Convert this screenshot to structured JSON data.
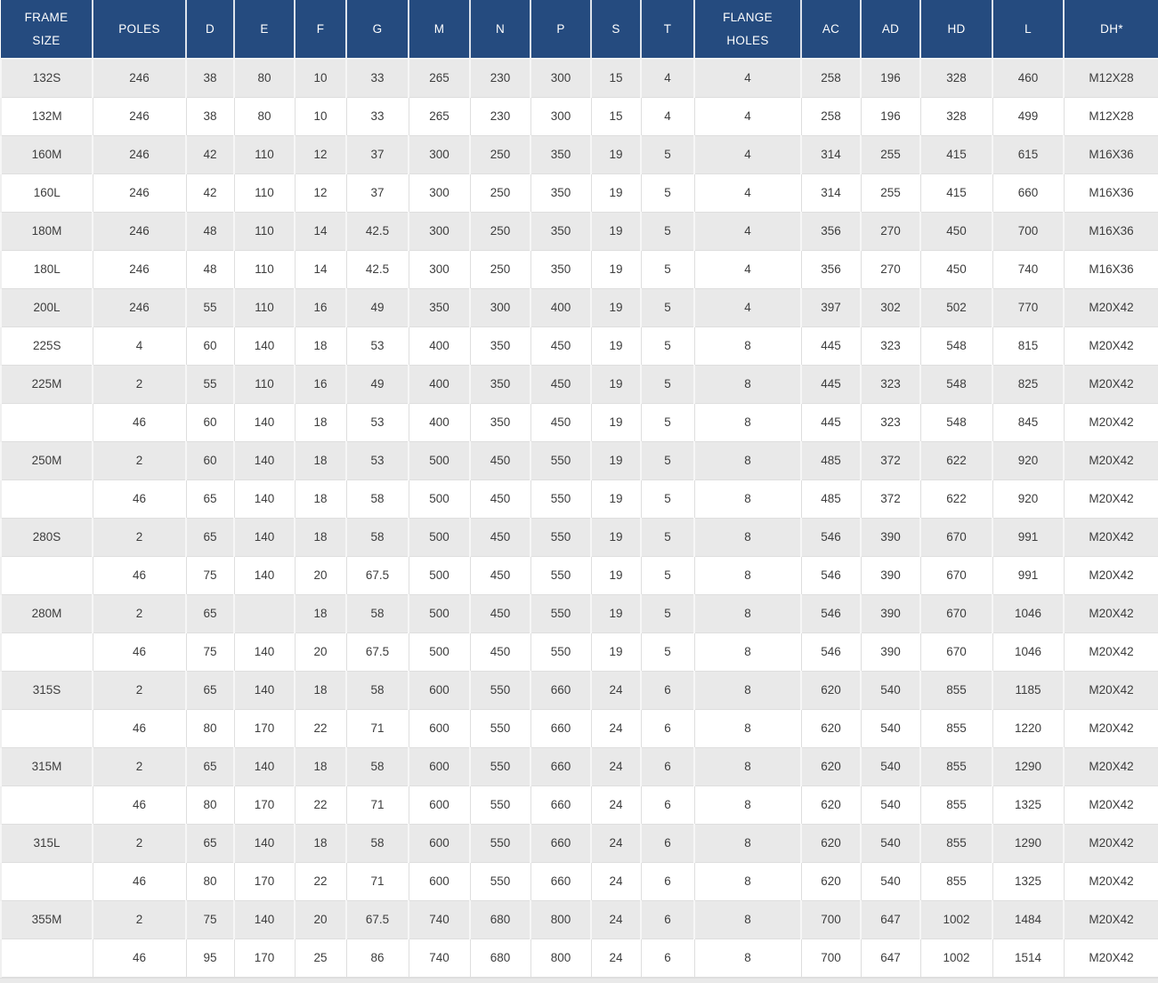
{
  "colors": {
    "header_bg": "#254b7f",
    "header_text": "#ffffff",
    "row_bg": "#ffffff",
    "row_alt_bg": "#e9e9e9",
    "grid_line": "#dedede",
    "cell_text": "#3d3d3d"
  },
  "table": {
    "columns": [
      {
        "key": "frame-size",
        "label": "FRAME\nSIZE"
      },
      {
        "key": "poles",
        "label": "POLES"
      },
      {
        "key": "d",
        "label": "D"
      },
      {
        "key": "e",
        "label": "E"
      },
      {
        "key": "f",
        "label": "F"
      },
      {
        "key": "g",
        "label": "G"
      },
      {
        "key": "m",
        "label": "M"
      },
      {
        "key": "n",
        "label": "N"
      },
      {
        "key": "p",
        "label": "P"
      },
      {
        "key": "s",
        "label": "S"
      },
      {
        "key": "t",
        "label": "T"
      },
      {
        "key": "flange-holes",
        "label": "FLANGE\nHOLES"
      },
      {
        "key": "ac",
        "label": "AC"
      },
      {
        "key": "ad",
        "label": "AD"
      },
      {
        "key": "hd",
        "label": "HD"
      },
      {
        "key": "l",
        "label": "L"
      },
      {
        "key": "dh",
        "label": "DH*"
      }
    ],
    "rows": [
      [
        "132S",
        "246",
        "38",
        "80",
        "10",
        "33",
        "265",
        "230",
        "300",
        "15",
        "4",
        "4",
        "258",
        "196",
        "328",
        "460",
        "M12X28"
      ],
      [
        "132M",
        "246",
        "38",
        "80",
        "10",
        "33",
        "265",
        "230",
        "300",
        "15",
        "4",
        "4",
        "258",
        "196",
        "328",
        "499",
        "M12X28"
      ],
      [
        "160M",
        "246",
        "42",
        "110",
        "12",
        "37",
        "300",
        "250",
        "350",
        "19",
        "5",
        "4",
        "314",
        "255",
        "415",
        "615",
        "M16X36"
      ],
      [
        "160L",
        "246",
        "42",
        "110",
        "12",
        "37",
        "300",
        "250",
        "350",
        "19",
        "5",
        "4",
        "314",
        "255",
        "415",
        "660",
        "M16X36"
      ],
      [
        "180M",
        "246",
        "48",
        "110",
        "14",
        "42.5",
        "300",
        "250",
        "350",
        "19",
        "5",
        "4",
        "356",
        "270",
        "450",
        "700",
        "M16X36"
      ],
      [
        "180L",
        "246",
        "48",
        "110",
        "14",
        "42.5",
        "300",
        "250",
        "350",
        "19",
        "5",
        "4",
        "356",
        "270",
        "450",
        "740",
        "M16X36"
      ],
      [
        "200L",
        "246",
        "55",
        "110",
        "16",
        "49",
        "350",
        "300",
        "400",
        "19",
        "5",
        "4",
        "397",
        "302",
        "502",
        "770",
        "M20X42"
      ],
      [
        "225S",
        "4",
        "60",
        "140",
        "18",
        "53",
        "400",
        "350",
        "450",
        "19",
        "5",
        "8",
        "445",
        "323",
        "548",
        "815",
        "M20X42"
      ],
      [
        "225M",
        "2",
        "55",
        "110",
        "16",
        "49",
        "400",
        "350",
        "450",
        "19",
        "5",
        "8",
        "445",
        "323",
        "548",
        "825",
        "M20X42"
      ],
      [
        "",
        "46",
        "60",
        "140",
        "18",
        "53",
        "400",
        "350",
        "450",
        "19",
        "5",
        "8",
        "445",
        "323",
        "548",
        "845",
        "M20X42"
      ],
      [
        "250M",
        "2",
        "60",
        "140",
        "18",
        "53",
        "500",
        "450",
        "550",
        "19",
        "5",
        "8",
        "485",
        "372",
        "622",
        "920",
        "M20X42"
      ],
      [
        "",
        "46",
        "65",
        "140",
        "18",
        "58",
        "500",
        "450",
        "550",
        "19",
        "5",
        "8",
        "485",
        "372",
        "622",
        "920",
        "M20X42"
      ],
      [
        "280S",
        "2",
        "65",
        "140",
        "18",
        "58",
        "500",
        "450",
        "550",
        "19",
        "5",
        "8",
        "546",
        "390",
        "670",
        "991",
        "M20X42"
      ],
      [
        "",
        "46",
        "75",
        "140",
        "20",
        "67.5",
        "500",
        "450",
        "550",
        "19",
        "5",
        "8",
        "546",
        "390",
        "670",
        "991",
        "M20X42"
      ],
      [
        "280M",
        "2",
        "65",
        "",
        "18",
        "58",
        "500",
        "450",
        "550",
        "19",
        "5",
        "8",
        "546",
        "390",
        "670",
        "1046",
        "M20X42"
      ],
      [
        "",
        "46",
        "75",
        "140",
        "20",
        "67.5",
        "500",
        "450",
        "550",
        "19",
        "5",
        "8",
        "546",
        "390",
        "670",
        "1046",
        "M20X42"
      ],
      [
        "315S",
        "2",
        "65",
        "140",
        "18",
        "58",
        "600",
        "550",
        "660",
        "24",
        "6",
        "8",
        "620",
        "540",
        "855",
        "1185",
        "M20X42"
      ],
      [
        "",
        "46",
        "80",
        "170",
        "22",
        "71",
        "600",
        "550",
        "660",
        "24",
        "6",
        "8",
        "620",
        "540",
        "855",
        "1220",
        "M20X42"
      ],
      [
        "315M",
        "2",
        "65",
        "140",
        "18",
        "58",
        "600",
        "550",
        "660",
        "24",
        "6",
        "8",
        "620",
        "540",
        "855",
        "1290",
        "M20X42"
      ],
      [
        "",
        "46",
        "80",
        "170",
        "22",
        "71",
        "600",
        "550",
        "660",
        "24",
        "6",
        "8",
        "620",
        "540",
        "855",
        "1325",
        "M20X42"
      ],
      [
        "315L",
        "2",
        "65",
        "140",
        "18",
        "58",
        "600",
        "550",
        "660",
        "24",
        "6",
        "8",
        "620",
        "540",
        "855",
        "1290",
        "M20X42"
      ],
      [
        "",
        "46",
        "80",
        "170",
        "22",
        "71",
        "600",
        "550",
        "660",
        "24",
        "6",
        "8",
        "620",
        "540",
        "855",
        "1325",
        "M20X42"
      ],
      [
        "355M",
        "2",
        "75",
        "140",
        "20",
        "67.5",
        "740",
        "680",
        "800",
        "24",
        "6",
        "8",
        "700",
        "647",
        "1002",
        "1484",
        "M20X42"
      ],
      [
        "",
        "46",
        "95",
        "170",
        "25",
        "86",
        "740",
        "680",
        "800",
        "24",
        "6",
        "8",
        "700",
        "647",
        "1002",
        "1514",
        "M20X42"
      ]
    ]
  }
}
